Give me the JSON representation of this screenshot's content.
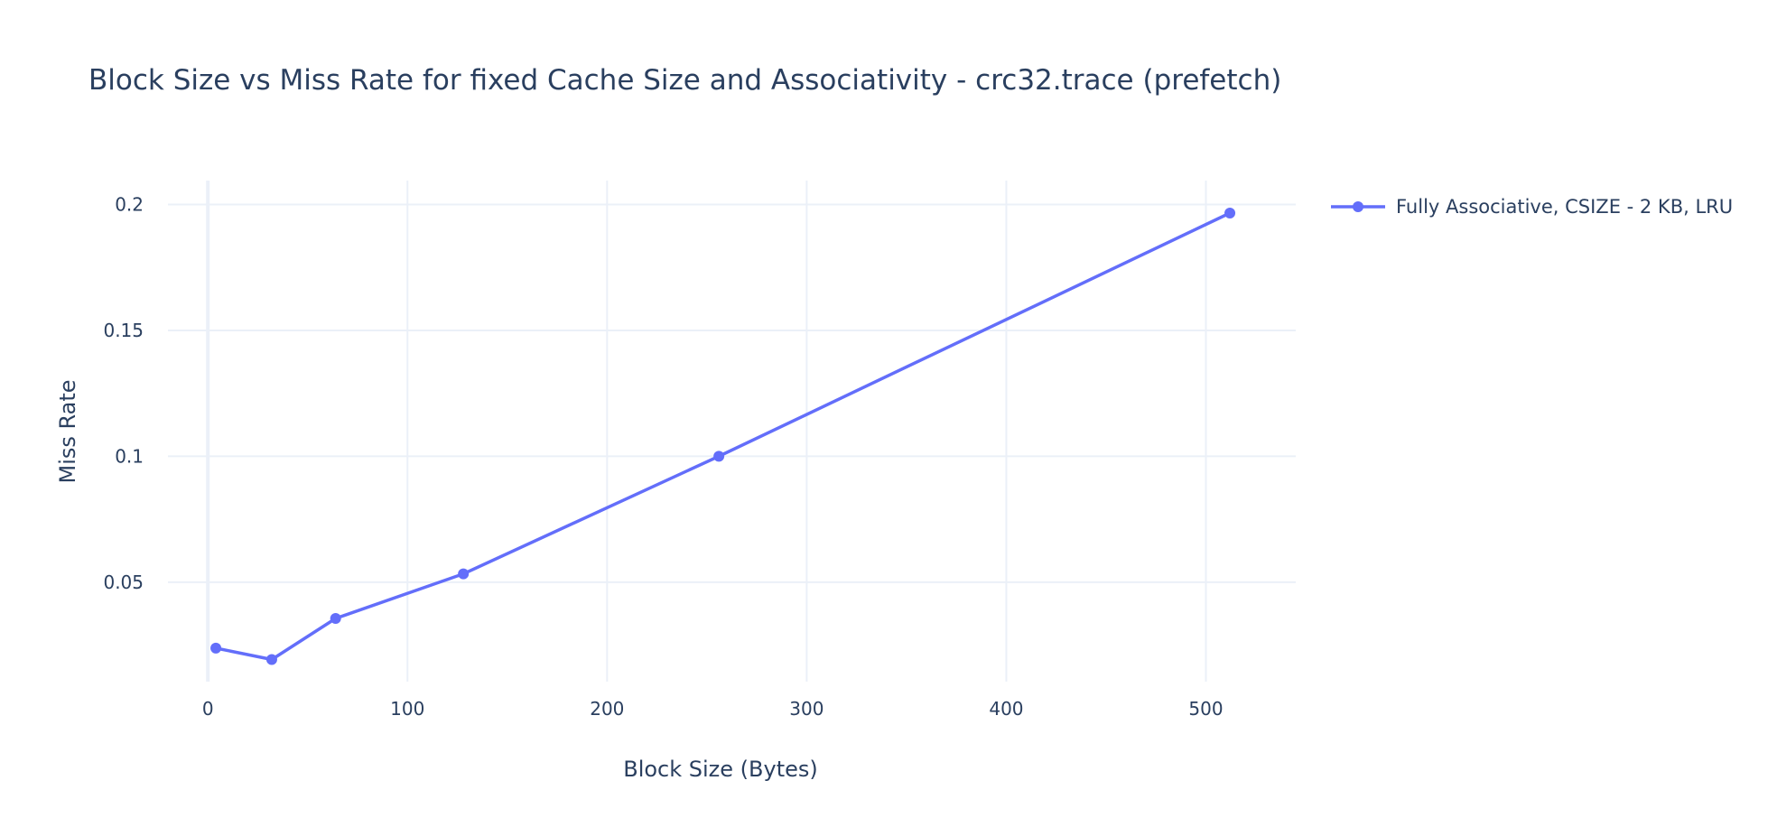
{
  "chart_data": {
    "type": "line",
    "title": "Block Size vs Miss Rate for fixed Cache Size and Associativity - crc32.trace (prefetch)",
    "xlabel": "Block Size (Bytes)",
    "ylabel": "Miss Rate",
    "xlim": [
      -20,
      545
    ],
    "ylim": [
      0.0105,
      0.2095
    ],
    "x_ticks": [
      0,
      100,
      200,
      300,
      400,
      500
    ],
    "x_tick_labels": [
      "0",
      "100",
      "200",
      "300",
      "400",
      "500"
    ],
    "y_ticks": [
      0.05,
      0.1,
      0.15,
      0.2
    ],
    "y_tick_labels": [
      "0.05",
      "0.1",
      "0.15",
      "0.2"
    ],
    "grid": true,
    "legend_position": "top-right",
    "series": [
      {
        "name": "Fully Associative, CSIZE - 2 KB, LRU",
        "color": "#636efa",
        "x": [
          4,
          32,
          64,
          128,
          256,
          512
        ],
        "y": [
          0.0238,
          0.0193,
          0.0356,
          0.0533,
          0.1,
          0.1966
        ]
      }
    ]
  }
}
